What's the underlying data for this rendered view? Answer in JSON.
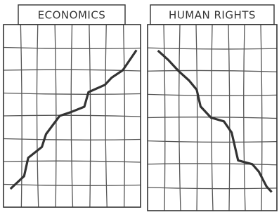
{
  "chart_data": [
    {
      "type": "line",
      "title": "ECONOMICS",
      "x": [
        5,
        15,
        18,
        28,
        31,
        41,
        49,
        59,
        62,
        74,
        79,
        87,
        97
      ],
      "values": [
        10,
        17,
        27,
        33,
        40,
        50,
        52,
        55,
        63,
        67,
        71,
        75,
        86
      ],
      "xlim": [
        0,
        100
      ],
      "ylim": [
        0,
        100
      ],
      "color": "#333333",
      "grid": true
    },
    {
      "type": "line",
      "title": "HUMAN RIGHTS",
      "x": [
        8,
        16,
        24,
        32,
        38,
        41,
        49,
        59,
        65,
        70,
        81,
        86,
        92,
        96
      ],
      "values": [
        86,
        81,
        75,
        70,
        65,
        56,
        50,
        48,
        42,
        27,
        25,
        21,
        13,
        10
      ],
      "xlim": [
        0,
        100
      ],
      "ylim": [
        0,
        100
      ],
      "color": "#333333",
      "grid": true
    }
  ]
}
